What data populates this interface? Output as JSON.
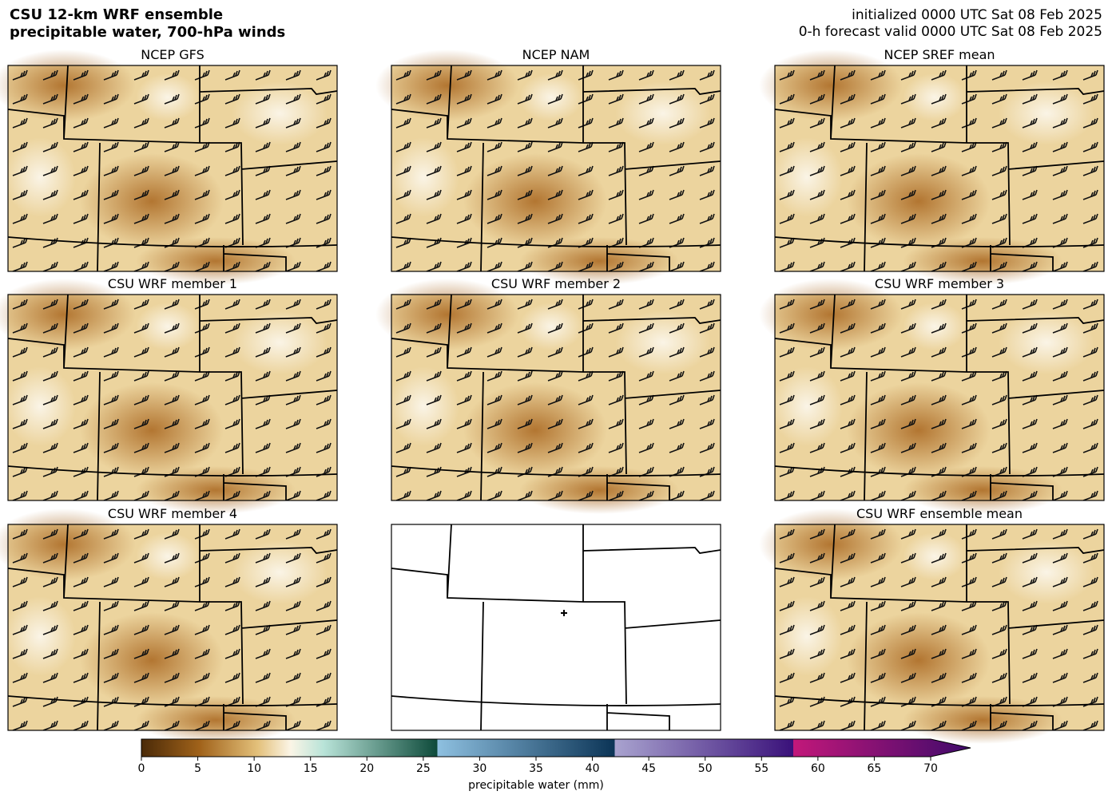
{
  "header": {
    "title": [
      "CSU 12-km WRF ensemble",
      "precipitable water, 700-hPa winds"
    ],
    "info": [
      "initialized 0000 UTC Sat 08 Feb 2025",
      "0-h forecast valid 0000 UTC Sat 08 Feb 2025"
    ]
  },
  "panels": [
    {
      "title": "NCEP GFS"
    },
    {
      "title": "NCEP NAM"
    },
    {
      "title": "NCEP SREF mean"
    },
    {
      "title": "CSU WRF member 1"
    },
    {
      "title": "CSU WRF member 2"
    },
    {
      "title": "CSU WRF member 3"
    },
    {
      "title": "CSU WRF member 4"
    },
    {
      "title": null
    },
    {
      "title": "CSU WRF ensemble mean"
    }
  ],
  "colorbar": {
    "label": "precipitable water (mm)",
    "range": [
      0,
      70
    ],
    "ticks": [
      0,
      5,
      10,
      15,
      20,
      25,
      30,
      35,
      40,
      45,
      50,
      55,
      60,
      65,
      70
    ]
  }
}
